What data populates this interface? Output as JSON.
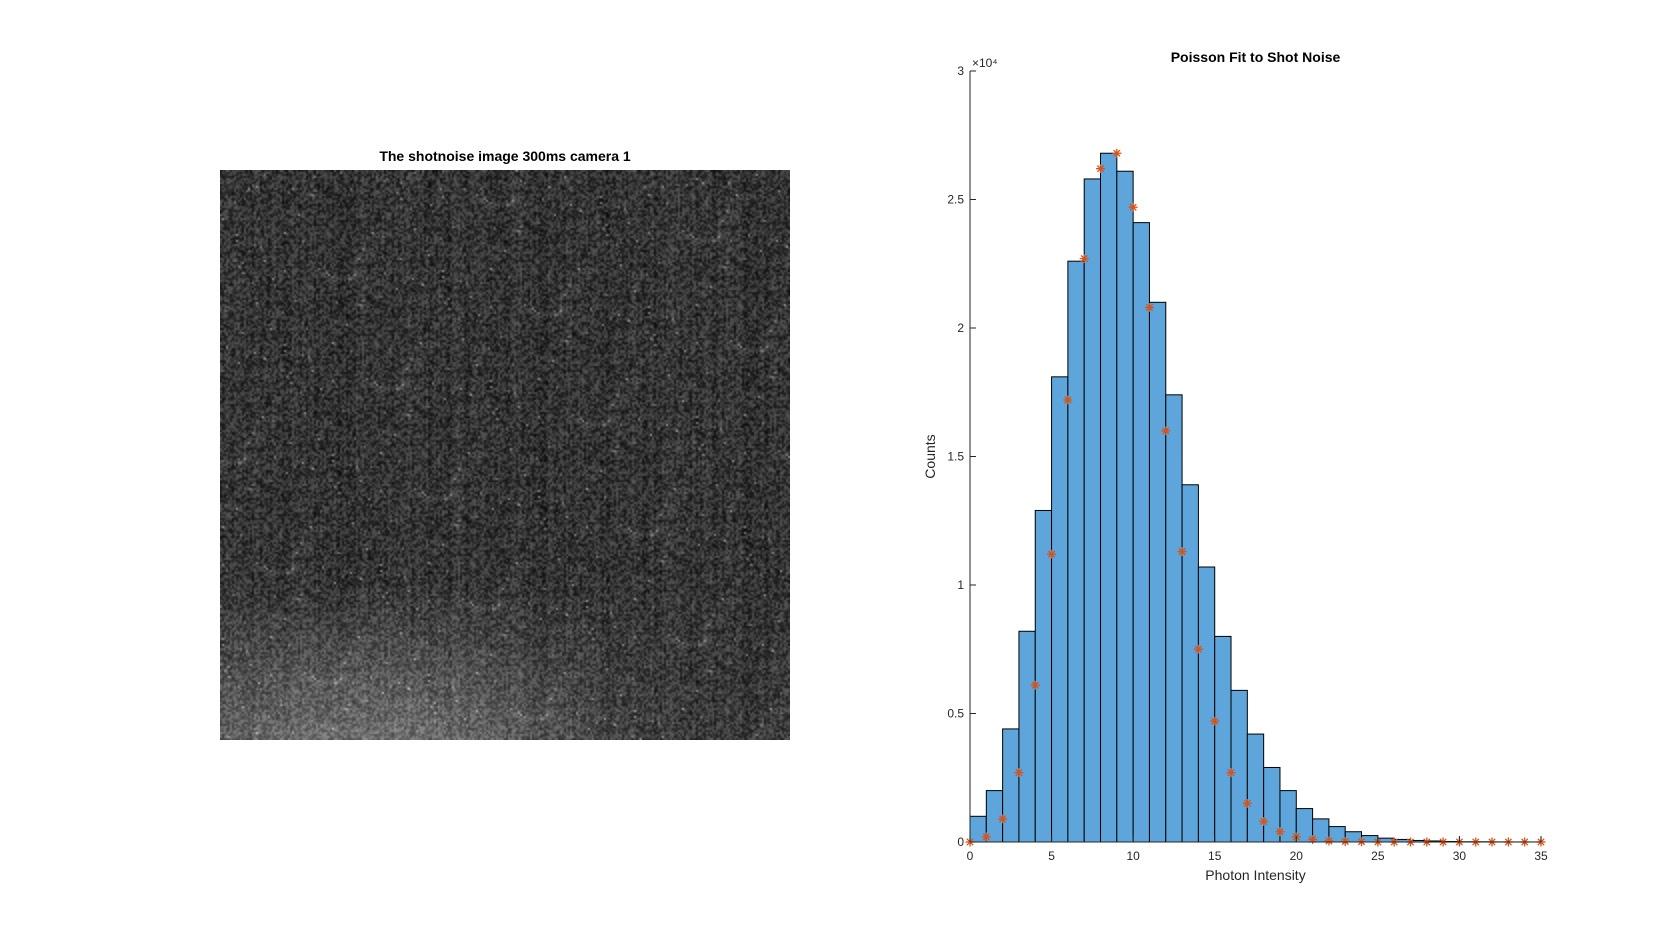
{
  "image_panel": {
    "title": "The shotnoise image 300ms camera 1"
  },
  "chart_data": {
    "type": "bar",
    "title": "Poisson Fit to Shot Noise",
    "xlabel": "Photon Intensity",
    "ylabel": "Counts",
    "y_exponent_label": "×10⁴",
    "xlim": [
      0,
      35
    ],
    "ylim": [
      0,
      3
    ],
    "xticks": [
      0,
      5,
      10,
      15,
      20,
      25,
      30,
      35
    ],
    "yticks": [
      0,
      0.5,
      1,
      1.5,
      2,
      2.5,
      3
    ],
    "ytick_labels": [
      "0",
      "0.5",
      "1",
      "1.5",
      "2",
      "2.5",
      "3"
    ],
    "grid": false,
    "series": [
      {
        "kind": "histogram",
        "color": "#5DA5DA",
        "edge_color": "#000000",
        "bin_width": 1,
        "bin_starts": [
          0,
          1,
          2,
          3,
          4,
          5,
          6,
          7,
          8,
          9,
          10,
          11,
          12,
          13,
          14,
          15,
          16,
          17,
          18,
          19,
          20,
          21,
          22,
          23,
          24,
          25,
          26,
          27,
          28,
          29,
          30,
          31,
          32,
          33,
          34
        ],
        "values": [
          0.1,
          0.2,
          0.44,
          0.82,
          1.29,
          1.81,
          2.26,
          2.58,
          2.68,
          2.61,
          2.41,
          2.1,
          1.74,
          1.39,
          1.07,
          0.8,
          0.59,
          0.42,
          0.29,
          0.2,
          0.13,
          0.09,
          0.06,
          0.04,
          0.025,
          0.015,
          0.01,
          0.006,
          0.004,
          0.002,
          0.001,
          0.001,
          0.0005,
          0.0003,
          0.0002
        ]
      },
      {
        "kind": "scatter",
        "marker": "*",
        "color": "#D95319",
        "x": [
          0,
          1,
          2,
          3,
          4,
          5,
          6,
          7,
          8,
          9,
          10,
          11,
          12,
          13,
          14,
          15,
          16,
          17,
          18,
          19,
          20,
          21,
          22,
          23,
          24,
          25,
          26,
          27,
          28,
          29,
          30,
          31,
          32,
          33,
          34,
          35
        ],
        "y": [
          0.0,
          0.02,
          0.09,
          0.27,
          0.61,
          1.12,
          1.72,
          2.27,
          2.62,
          2.68,
          2.47,
          2.08,
          1.6,
          1.13,
          0.75,
          0.47,
          0.27,
          0.15,
          0.08,
          0.04,
          0.02,
          0.01,
          0.004,
          0.002,
          0.001,
          0.0,
          0.0,
          0.0,
          0.0,
          0.0,
          0.0,
          0.0,
          0.0,
          0.0,
          0.0,
          0.0
        ]
      }
    ]
  }
}
